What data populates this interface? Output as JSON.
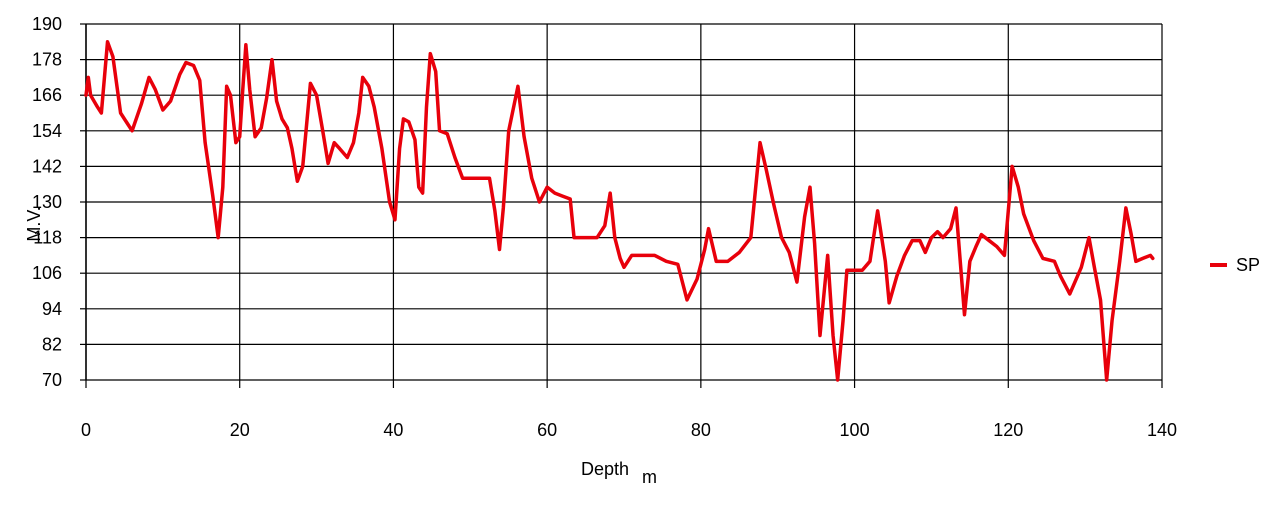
{
  "chart_data": {
    "type": "line",
    "xlabel": "Depth",
    "xlabel_unit": "m",
    "ylabel": "M.V.",
    "xlim": [
      0,
      140
    ],
    "ylim": [
      70,
      190
    ],
    "x_ticks": [
      0,
      20,
      40,
      60,
      80,
      100,
      120,
      140
    ],
    "y_ticks": [
      70,
      82,
      94,
      106,
      118,
      130,
      142,
      154,
      166,
      178,
      190
    ],
    "grid": true,
    "legend_position": "right",
    "series": [
      {
        "name": "SP",
        "color": "#e8000b",
        "points": [
          [
            0,
            166
          ],
          [
            0.3,
            172
          ],
          [
            0.6,
            166
          ],
          [
            1.5,
            162
          ],
          [
            2,
            160
          ],
          [
            2.8,
            184
          ],
          [
            3.5,
            179
          ],
          [
            4.5,
            160
          ],
          [
            5.5,
            156
          ],
          [
            6,
            154
          ],
          [
            7.2,
            163
          ],
          [
            8.2,
            172
          ],
          [
            9,
            168
          ],
          [
            10,
            161
          ],
          [
            11,
            164
          ],
          [
            12.2,
            173
          ],
          [
            13,
            177
          ],
          [
            14,
            176
          ],
          [
            14.8,
            171
          ],
          [
            15.5,
            150
          ],
          [
            16.5,
            132
          ],
          [
            17.2,
            118
          ],
          [
            17.8,
            135
          ],
          [
            18.3,
            169
          ],
          [
            18.8,
            166
          ],
          [
            19.5,
            150
          ],
          [
            20,
            152
          ],
          [
            20.4,
            168
          ],
          [
            20.8,
            183
          ],
          [
            21.3,
            168
          ],
          [
            22,
            152
          ],
          [
            22.8,
            155
          ],
          [
            23.5,
            165
          ],
          [
            24.2,
            178
          ],
          [
            24.8,
            164
          ],
          [
            25.5,
            158
          ],
          [
            26.2,
            155
          ],
          [
            26.8,
            148
          ],
          [
            27.5,
            137
          ],
          [
            28.2,
            142
          ],
          [
            29.2,
            170
          ],
          [
            30,
            166
          ],
          [
            30.8,
            154
          ],
          [
            31.5,
            143
          ],
          [
            32.3,
            150
          ],
          [
            33,
            148
          ],
          [
            34,
            145
          ],
          [
            34.8,
            150
          ],
          [
            35.5,
            160
          ],
          [
            36,
            172
          ],
          [
            36.8,
            169
          ],
          [
            37.5,
            162
          ],
          [
            38.5,
            148
          ],
          [
            39.5,
            130
          ],
          [
            40.2,
            124
          ],
          [
            40.8,
            148
          ],
          [
            41.3,
            158
          ],
          [
            42,
            157
          ],
          [
            42.8,
            151
          ],
          [
            43.3,
            135
          ],
          [
            43.8,
            133
          ],
          [
            44.3,
            162
          ],
          [
            44.8,
            180
          ],
          [
            45.5,
            174
          ],
          [
            46,
            154
          ],
          [
            47,
            153
          ],
          [
            48,
            145
          ],
          [
            49,
            138
          ],
          [
            51,
            138
          ],
          [
            52.5,
            138
          ],
          [
            53.2,
            127
          ],
          [
            53.8,
            114
          ],
          [
            54.3,
            128
          ],
          [
            55,
            154
          ],
          [
            56.2,
            169
          ],
          [
            57,
            152
          ],
          [
            58,
            138
          ],
          [
            59,
            130
          ],
          [
            60,
            135
          ],
          [
            61,
            133
          ],
          [
            62,
            132
          ],
          [
            63,
            131
          ],
          [
            63.5,
            118
          ],
          [
            65,
            118
          ],
          [
            66.5,
            118
          ],
          [
            67.5,
            122
          ],
          [
            68.2,
            133
          ],
          [
            68.8,
            118
          ],
          [
            69.5,
            111
          ],
          [
            70,
            108
          ],
          [
            71,
            112
          ],
          [
            74,
            112
          ],
          [
            75.5,
            110
          ],
          [
            77,
            109
          ],
          [
            78.2,
            97
          ],
          [
            79.5,
            104
          ],
          [
            80.5,
            114
          ],
          [
            81,
            121
          ],
          [
            82,
            110
          ],
          [
            83.5,
            110
          ],
          [
            85,
            113
          ],
          [
            86.5,
            118
          ],
          [
            87.7,
            150
          ],
          [
            88.5,
            141
          ],
          [
            89.5,
            129
          ],
          [
            90.5,
            118
          ],
          [
            91.5,
            113
          ],
          [
            92.5,
            103
          ],
          [
            93.5,
            125
          ],
          [
            94.2,
            135
          ],
          [
            94.8,
            116
          ],
          [
            95.5,
            85
          ],
          [
            96.5,
            112
          ],
          [
            97.2,
            85
          ],
          [
            97.8,
            70
          ],
          [
            98.5,
            90
          ],
          [
            99,
            107
          ],
          [
            100,
            107
          ],
          [
            101,
            107
          ],
          [
            102,
            110
          ],
          [
            103,
            127
          ],
          [
            104,
            110
          ],
          [
            104.5,
            96
          ],
          [
            105.5,
            105
          ],
          [
            106.5,
            112
          ],
          [
            107.5,
            117
          ],
          [
            108.5,
            117
          ],
          [
            109.2,
            113
          ],
          [
            110,
            118
          ],
          [
            110.8,
            120
          ],
          [
            111.5,
            118
          ],
          [
            112.5,
            121
          ],
          [
            113.2,
            128
          ],
          [
            114.3,
            92
          ],
          [
            115,
            110
          ],
          [
            115.8,
            115
          ],
          [
            116.5,
            119
          ],
          [
            117.5,
            117
          ],
          [
            118.5,
            115
          ],
          [
            119.5,
            112
          ],
          [
            120.5,
            142
          ],
          [
            121.3,
            135
          ],
          [
            122,
            126
          ],
          [
            123.3,
            117
          ],
          [
            124.5,
            111
          ],
          [
            126,
            110
          ],
          [
            126.8,
            105
          ],
          [
            128,
            99
          ],
          [
            129.5,
            108
          ],
          [
            130.5,
            118
          ],
          [
            131.2,
            108
          ],
          [
            132,
            97
          ],
          [
            132.8,
            70
          ],
          [
            133.5,
            90
          ],
          [
            134.5,
            110
          ],
          [
            135.3,
            128
          ],
          [
            136,
            119
          ],
          [
            136.6,
            110
          ],
          [
            137.5,
            111
          ],
          [
            138.5,
            112
          ],
          [
            138.8,
            111
          ]
        ]
      }
    ]
  }
}
